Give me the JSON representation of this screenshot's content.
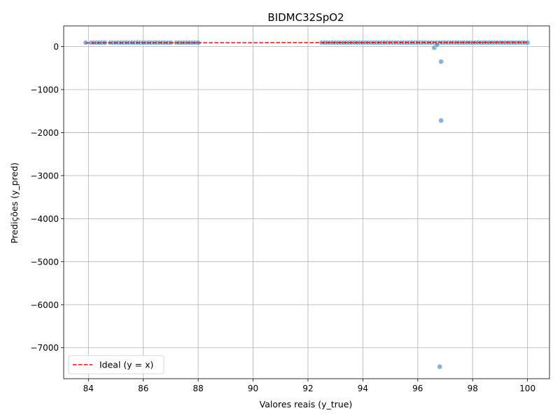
{
  "chart_data": {
    "type": "scatter",
    "title": "BIDMC32SpO2",
    "xlabel": "Valores reais (y_true)",
    "ylabel": "Predições (y_pred)",
    "xlim": [
      83.1,
      100.8
    ],
    "ylim": [
      -7720,
      480
    ],
    "xticks": [
      84,
      86,
      88,
      90,
      92,
      94,
      96,
      98,
      100
    ],
    "yticks": [
      0,
      -1000,
      -2000,
      -3000,
      -4000,
      -5000,
      -6000,
      -7000
    ],
    "xtick_labels": [
      "84",
      "86",
      "88",
      "90",
      "92",
      "94",
      "96",
      "98",
      "100"
    ],
    "ytick_labels": [
      "0",
      "−1000",
      "−2000",
      "−3000",
      "−4000",
      "−5000",
      "−6000",
      "−7000"
    ],
    "grid": true,
    "legend_position": "lower-left",
    "series": [
      {
        "kind": "scatter",
        "color": "#1f77b4",
        "points": [
          [
            83.9,
            90
          ],
          [
            84.1,
            90
          ],
          [
            84.2,
            90
          ],
          [
            84.3,
            90
          ],
          [
            84.4,
            90
          ],
          [
            84.5,
            90
          ],
          [
            84.6,
            90
          ],
          [
            84.8,
            90
          ],
          [
            84.9,
            90
          ],
          [
            85.0,
            90
          ],
          [
            85.1,
            90
          ],
          [
            85.2,
            90
          ],
          [
            85.3,
            90
          ],
          [
            85.4,
            90
          ],
          [
            85.5,
            90
          ],
          [
            85.6,
            90
          ],
          [
            85.7,
            90
          ],
          [
            85.8,
            90
          ],
          [
            85.9,
            90
          ],
          [
            86.0,
            90
          ],
          [
            86.1,
            90
          ],
          [
            86.2,
            90
          ],
          [
            86.3,
            90
          ],
          [
            86.4,
            90
          ],
          [
            86.5,
            90
          ],
          [
            86.6,
            90
          ],
          [
            86.7,
            90
          ],
          [
            86.8,
            90
          ],
          [
            86.9,
            90
          ],
          [
            87.0,
            90
          ],
          [
            87.2,
            90
          ],
          [
            87.3,
            90
          ],
          [
            87.4,
            90
          ],
          [
            87.5,
            90
          ],
          [
            87.6,
            90
          ],
          [
            87.7,
            90
          ],
          [
            87.8,
            90
          ],
          [
            87.9,
            90
          ],
          [
            88.0,
            90
          ],
          [
            92.5,
            90
          ],
          [
            92.6,
            90
          ],
          [
            92.7,
            90
          ],
          [
            92.8,
            90
          ],
          [
            92.9,
            90
          ],
          [
            93.0,
            90
          ],
          [
            93.1,
            90
          ],
          [
            93.2,
            90
          ],
          [
            93.3,
            90
          ],
          [
            93.4,
            90
          ],
          [
            93.5,
            90
          ],
          [
            93.6,
            90
          ],
          [
            93.7,
            90
          ],
          [
            93.8,
            90
          ],
          [
            93.9,
            90
          ],
          [
            94.0,
            90
          ],
          [
            94.1,
            90
          ],
          [
            94.2,
            90
          ],
          [
            94.3,
            90
          ],
          [
            94.4,
            90
          ],
          [
            94.5,
            90
          ],
          [
            94.6,
            90
          ],
          [
            94.7,
            90
          ],
          [
            94.8,
            90
          ],
          [
            94.9,
            90
          ],
          [
            95.0,
            90
          ],
          [
            95.1,
            90
          ],
          [
            95.2,
            90
          ],
          [
            95.3,
            90
          ],
          [
            95.4,
            90
          ],
          [
            95.5,
            90
          ],
          [
            95.6,
            90
          ],
          [
            95.7,
            90
          ],
          [
            95.8,
            90
          ],
          [
            95.9,
            90
          ],
          [
            96.0,
            90
          ],
          [
            96.1,
            90
          ],
          [
            96.2,
            90
          ],
          [
            96.3,
            90
          ],
          [
            96.4,
            90
          ],
          [
            96.5,
            90
          ],
          [
            96.6,
            90
          ],
          [
            96.7,
            90
          ],
          [
            96.8,
            90
          ],
          [
            96.9,
            90
          ],
          [
            97.0,
            90
          ],
          [
            97.1,
            90
          ],
          [
            97.2,
            90
          ],
          [
            97.3,
            90
          ],
          [
            97.4,
            90
          ],
          [
            97.5,
            90
          ],
          [
            97.6,
            90
          ],
          [
            97.7,
            90
          ],
          [
            97.8,
            90
          ],
          [
            97.9,
            90
          ],
          [
            98.0,
            90
          ],
          [
            98.1,
            90
          ],
          [
            98.2,
            90
          ],
          [
            98.3,
            90
          ],
          [
            98.4,
            90
          ],
          [
            98.5,
            90
          ],
          [
            98.6,
            90
          ],
          [
            98.7,
            90
          ],
          [
            98.8,
            90
          ],
          [
            98.9,
            90
          ],
          [
            99.0,
            90
          ],
          [
            99.1,
            90
          ],
          [
            99.2,
            90
          ],
          [
            99.3,
            90
          ],
          [
            99.4,
            90
          ],
          [
            99.5,
            90
          ],
          [
            99.6,
            90
          ],
          [
            99.7,
            90
          ],
          [
            99.8,
            90
          ],
          [
            99.9,
            90
          ],
          [
            100.0,
            90
          ],
          [
            96.6,
            -30
          ],
          [
            96.7,
            40
          ],
          [
            96.85,
            -350
          ],
          [
            96.85,
            -1720
          ],
          [
            96.8,
            -7440
          ]
        ]
      },
      {
        "name": "Ideal (y = x)",
        "kind": "line",
        "color": "#ff0000",
        "style": "dashed",
        "points": [
          [
            83.9,
            83.9
          ],
          [
            100.0,
            100.0
          ]
        ]
      }
    ]
  }
}
